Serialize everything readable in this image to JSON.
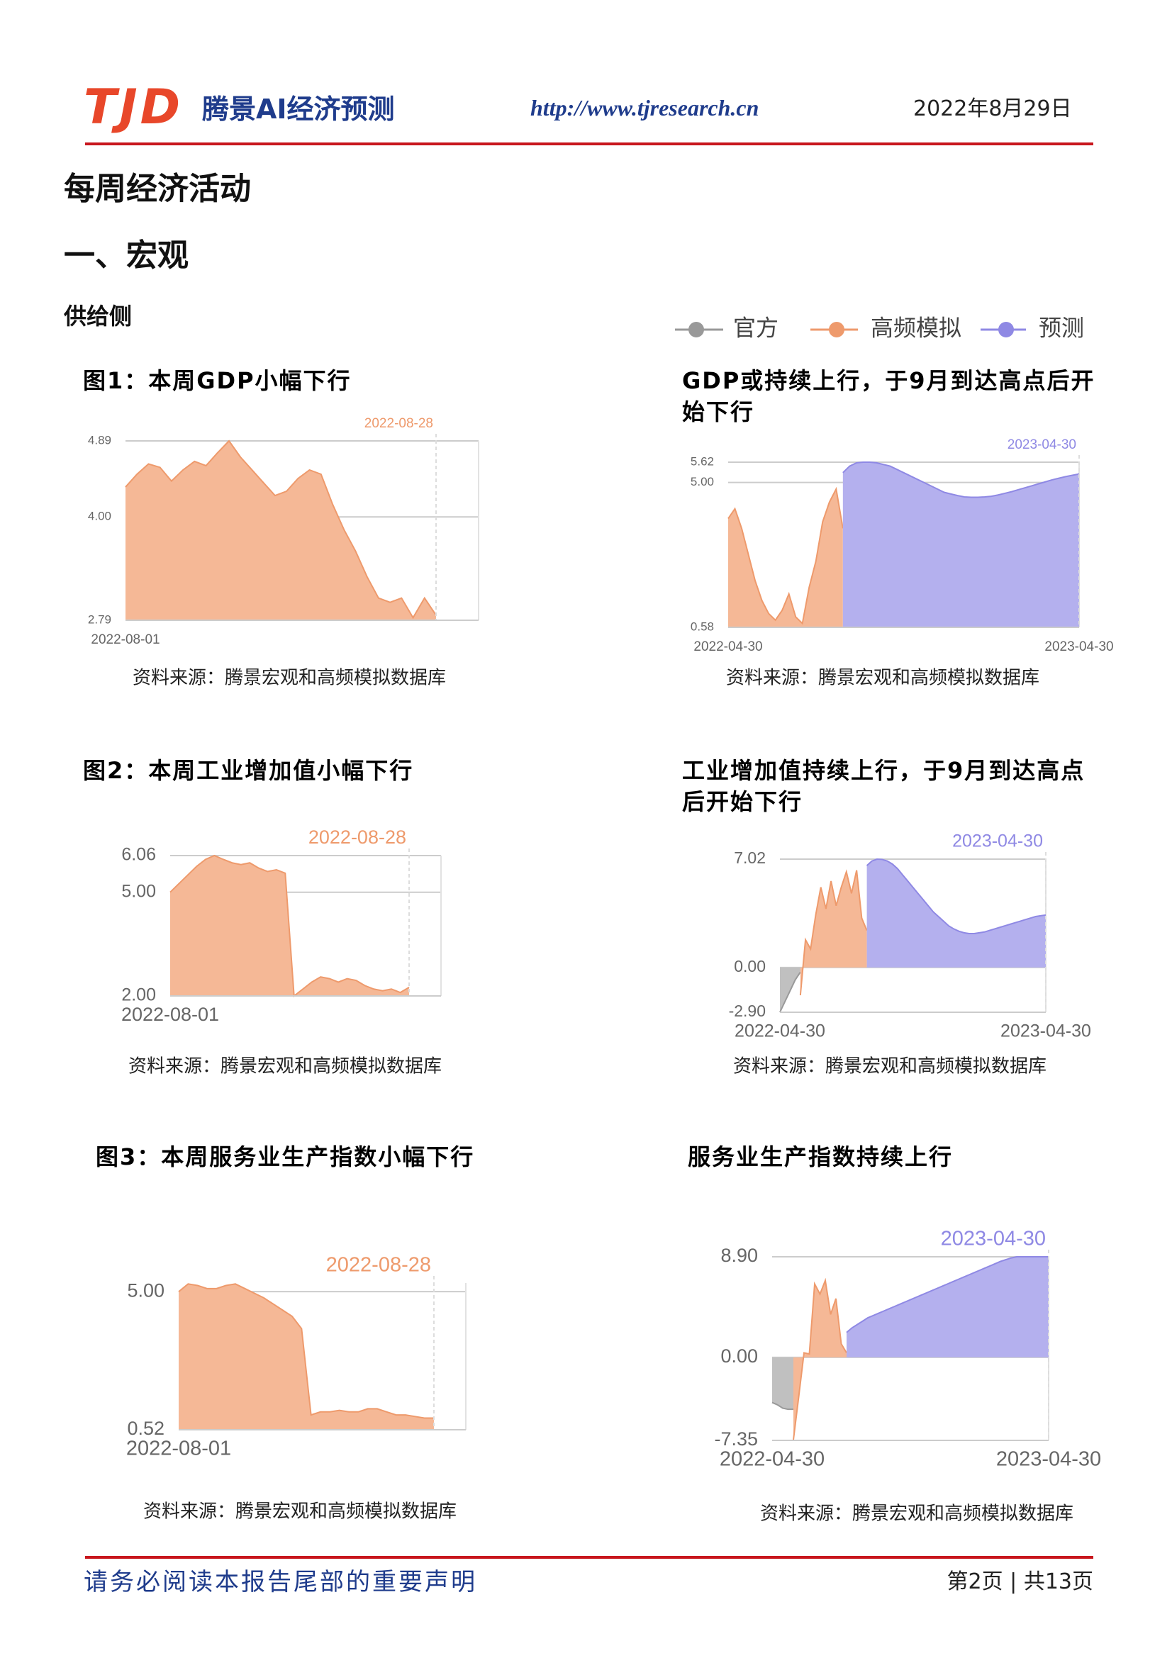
{
  "header": {
    "logo": "TJD",
    "brand": "腾景AI经济预测",
    "url": "http://www.tjresearch.cn",
    "date": "2022年8月29日"
  },
  "headings": {
    "title": "每周经济活动",
    "section": "一、宏观",
    "subsection": "供给侧"
  },
  "chart_data": [
    {
      "type": "area",
      "title": "图1：本周GDP小幅下行",
      "source": "资料来源：腾景宏观和高频模拟数据库",
      "annotation": "2022-08-28",
      "categories": [
        "2022-08-01",
        null,
        null,
        null,
        null,
        null,
        null,
        null,
        null,
        null,
        null,
        null,
        null,
        null,
        null,
        null,
        null,
        null,
        null,
        null,
        null,
        null,
        null,
        null,
        null,
        null,
        null,
        null
      ],
      "ylim": [
        2.79,
        4.89
      ],
      "yticks": [
        2.79,
        {
          "value": 4,
          "label": "4.00"
        },
        4.89
      ],
      "series": [
        {
          "name": "高频模拟",
          "color": "#f5b896",
          "values": [
            4.35,
            4.5,
            4.62,
            4.58,
            4.42,
            4.55,
            4.65,
            4.6,
            4.75,
            4.89,
            4.7,
            4.55,
            4.4,
            4.25,
            4.3,
            4.45,
            4.55,
            4.5,
            4.15,
            3.85,
            3.6,
            3.3,
            3.05,
            3.0,
            3.05,
            2.82,
            3.05,
            2.85
          ]
        }
      ]
    },
    {
      "type": "area",
      "title": "GDP或持续上行，于9月到达高点后开始下行",
      "source": "资料来源：腾景宏观和高频模拟数据库",
      "annotation": "2023-04-30",
      "categories": [
        "2022-04-30",
        null,
        null,
        null,
        null,
        null,
        null,
        null,
        null,
        null,
        null,
        null,
        null,
        null,
        null,
        null,
        null,
        null,
        null,
        null,
        null,
        null,
        null,
        null,
        null,
        null,
        null,
        null,
        null,
        null,
        null,
        null,
        null,
        null,
        null,
        null,
        null,
        null,
        null,
        null,
        null,
        null,
        null,
        null,
        null,
        null,
        null,
        null,
        null,
        null,
        null,
        null,
        "2023-04-30"
      ],
      "ylim": [
        0.58,
        5.62
      ],
      "yticks": [
        0.58,
        {
          "value": 5,
          "label": "5.00"
        },
        5.62
      ],
      "series": [
        {
          "name": "高频模拟",
          "color": "#f5b896",
          "values": [
            3.9,
            4.2,
            3.6,
            2.8,
            2.0,
            1.4,
            1.0,
            0.8,
            1.1,
            1.6,
            0.9,
            0.7,
            1.8,
            2.6,
            3.8,
            4.4,
            4.8,
            3.6,
            null,
            null,
            null,
            null,
            null,
            null,
            null,
            null,
            null,
            null,
            null,
            null,
            null,
            null,
            null,
            null,
            null,
            null,
            null,
            null,
            null,
            null,
            null,
            null,
            null,
            null,
            null,
            null,
            null,
            null,
            null,
            null,
            null,
            null,
            null
          ]
        },
        {
          "name": "预测",
          "color": "#b4b0ee",
          "values": [
            null,
            null,
            null,
            null,
            null,
            null,
            null,
            null,
            null,
            null,
            null,
            null,
            null,
            null,
            null,
            null,
            null,
            5.3,
            5.5,
            5.6,
            5.62,
            5.62,
            5.6,
            5.55,
            5.5,
            5.4,
            5.3,
            5.2,
            5.1,
            5.0,
            4.9,
            4.8,
            4.7,
            4.65,
            4.6,
            4.56,
            4.55,
            4.55,
            4.56,
            4.58,
            4.62,
            4.67,
            4.72,
            4.78,
            4.84,
            4.9,
            4.96,
            5.02,
            5.08,
            5.13,
            5.18,
            5.22,
            5.26
          ]
        }
      ]
    },
    {
      "type": "area",
      "title": "图2：本周工业增加值小幅下行",
      "source": "资料来源：腾景宏观和高频模拟数据库",
      "annotation": "2022-08-28",
      "categories": [
        "2022-08-01",
        null,
        null,
        null,
        null,
        null,
        null,
        null,
        null,
        null,
        null,
        null,
        null,
        null,
        null,
        null,
        null,
        null,
        null,
        null,
        null,
        null,
        null,
        null,
        null,
        null,
        null,
        null
      ],
      "ylim": [
        2,
        6.06
      ],
      "yticks": [
        {
          "value": 2,
          "label": "2.00"
        },
        {
          "value": 5,
          "label": "5.00"
        },
        6.06
      ],
      "series": [
        {
          "name": "高频模拟",
          "color": "#f5b896",
          "values": [
            5.0,
            5.25,
            5.5,
            5.75,
            5.95,
            6.06,
            5.95,
            5.85,
            5.8,
            5.85,
            5.7,
            5.6,
            5.65,
            5.55,
            2.0,
            2.2,
            2.4,
            2.55,
            2.5,
            2.4,
            2.5,
            2.45,
            2.3,
            2.2,
            2.15,
            2.2,
            2.1,
            2.25
          ]
        }
      ]
    },
    {
      "type": "area",
      "title": "工业增加值持续上行，于9月到达高点后开始下行",
      "source": "资料来源：腾景宏观和高频模拟数据库",
      "annotation": "2023-04-30",
      "categories": [
        "2022-04-30",
        null,
        null,
        null,
        null,
        null,
        null,
        null,
        null,
        null,
        null,
        null,
        null,
        null,
        null,
        null,
        null,
        null,
        null,
        null,
        null,
        null,
        null,
        null,
        null,
        null,
        null,
        null,
        null,
        null,
        null,
        null,
        null,
        null,
        null,
        null,
        null,
        null,
        null,
        null,
        null,
        null,
        null,
        null,
        null,
        null,
        null,
        null,
        null,
        null,
        null,
        null,
        "2023-04-30"
      ],
      "ylim": [
        -2.9,
        7.02
      ],
      "yticks": [
        {
          "value": -2.9,
          "label": "-2.90"
        },
        {
          "value": 0,
          "label": "0.00"
        },
        7.02
      ],
      "series": [
        {
          "name": "官方",
          "color": "#c0c0c0",
          "values": [
            -2.9,
            -2.2,
            -1.5,
            -0.8,
            -0.3,
            null,
            null,
            null,
            null,
            null,
            null,
            null,
            null,
            null,
            null,
            null,
            null,
            null,
            null,
            null,
            null,
            null,
            null,
            null,
            null,
            null,
            null,
            null,
            null,
            null,
            null,
            null,
            null,
            null,
            null,
            null,
            null,
            null,
            null,
            null,
            null,
            null,
            null,
            null,
            null,
            null,
            null,
            null,
            null,
            null,
            null,
            null,
            null
          ]
        },
        {
          "name": "高频模拟",
          "color": "#f5b896",
          "values": [
            null,
            null,
            null,
            null,
            -1.8,
            1.8,
            1.2,
            3.4,
            5.2,
            3.8,
            5.6,
            4.0,
            5.2,
            6.2,
            4.8,
            6.3,
            3.2,
            2.4,
            null,
            null,
            null,
            null,
            null,
            null,
            null,
            null,
            null,
            null,
            null,
            null,
            null,
            null,
            null,
            null,
            null,
            null,
            null,
            null,
            null,
            null,
            null,
            null,
            null,
            null,
            null,
            null,
            null,
            null,
            null,
            null,
            null,
            null,
            null
          ]
        },
        {
          "name": "预测",
          "color": "#b4b0ee",
          "values": [
            null,
            null,
            null,
            null,
            null,
            null,
            null,
            null,
            null,
            null,
            null,
            null,
            null,
            null,
            null,
            null,
            null,
            6.6,
            6.9,
            7.02,
            7.0,
            6.9,
            6.7,
            6.4,
            6.0,
            5.6,
            5.2,
            4.8,
            4.4,
            4.0,
            3.6,
            3.3,
            3.0,
            2.7,
            2.5,
            2.35,
            2.25,
            2.2,
            2.2,
            2.25,
            2.3,
            2.4,
            2.5,
            2.6,
            2.7,
            2.8,
            2.9,
            3.0,
            3.1,
            3.2,
            3.3,
            3.35,
            3.4
          ]
        }
      ]
    },
    {
      "type": "area",
      "title": "图3：本周服务业生产指数小幅下行",
      "source": "资料来源：腾景宏观和高频模拟数据库",
      "annotation": "2022-08-28",
      "categories": [
        "2022-08-01",
        null,
        null,
        null,
        null,
        null,
        null,
        null,
        null,
        null,
        null,
        null,
        null,
        null,
        null,
        null,
        null,
        null,
        null,
        null,
        null,
        null,
        null,
        null,
        null,
        null,
        null,
        null
      ],
      "ylim": [
        0.52,
        5.28
      ],
      "yticks": [
        0.52,
        {
          "value": 5,
          "label": "5.00"
        }
      ],
      "series": [
        {
          "name": "高频模拟",
          "color": "#f5b896",
          "values": [
            5.0,
            5.25,
            5.2,
            5.1,
            5.1,
            5.2,
            5.25,
            5.1,
            4.95,
            4.8,
            4.6,
            4.4,
            4.2,
            3.8,
            1.0,
            1.1,
            1.1,
            1.15,
            1.1,
            1.1,
            1.2,
            1.2,
            1.1,
            1.0,
            1.0,
            0.95,
            0.9,
            0.9
          ]
        }
      ]
    },
    {
      "type": "area",
      "title": "服务业生产指数持续上行",
      "source": "资料来源：腾景宏观和高频模拟数据库",
      "annotation": "2023-04-30",
      "categories": [
        "2022-04-30",
        null,
        null,
        null,
        null,
        null,
        null,
        null,
        null,
        null,
        null,
        null,
        null,
        null,
        null,
        null,
        null,
        null,
        null,
        null,
        null,
        null,
        null,
        null,
        null,
        null,
        null,
        null,
        null,
        null,
        null,
        null,
        null,
        null,
        null,
        null,
        null,
        null,
        null,
        null,
        null,
        null,
        null,
        null,
        null,
        null,
        null,
        null,
        null,
        null,
        null,
        null,
        "2023-04-30"
      ],
      "ylim": [
        -7.35,
        8.9
      ],
      "yticks": [
        -7.35,
        {
          "value": 0,
          "label": "0.00"
        },
        {
          "value": 8.9,
          "label": "8.90"
        }
      ],
      "series": [
        {
          "name": "官方",
          "color": "#c0c0c0",
          "values": [
            -4.0,
            -4.2,
            -4.5,
            -4.6,
            -4.6,
            null,
            null,
            null,
            null,
            null,
            null,
            null,
            null,
            null,
            null,
            null,
            null,
            null,
            null,
            null,
            null,
            null,
            null,
            null,
            null,
            null,
            null,
            null,
            null,
            null,
            null,
            null,
            null,
            null,
            null,
            null,
            null,
            null,
            null,
            null,
            null,
            null,
            null,
            null,
            null,
            null,
            null,
            null,
            null,
            null,
            null,
            null,
            null
          ]
        },
        {
          "name": "高频模拟",
          "color": "#f5b896",
          "values": [
            null,
            null,
            null,
            null,
            -7.3,
            -3.5,
            0.4,
            0.3,
            6.5,
            5.6,
            6.8,
            3.8,
            5.2,
            1.2,
            0.4,
            null,
            null,
            null,
            null,
            null,
            null,
            null,
            null,
            null,
            null,
            null,
            null,
            null,
            null,
            null,
            null,
            null,
            null,
            null,
            null,
            null,
            null,
            null,
            null,
            null,
            null,
            null,
            null,
            null,
            null,
            null,
            null,
            null,
            null,
            null,
            null,
            null,
            null
          ]
        },
        {
          "name": "预测",
          "color": "#b4b0ee",
          "values": [
            null,
            null,
            null,
            null,
            null,
            null,
            null,
            null,
            null,
            null,
            null,
            null,
            null,
            null,
            2.2,
            2.6,
            2.9,
            3.2,
            3.5,
            3.7,
            3.9,
            4.1,
            4.3,
            4.5,
            4.7,
            4.9,
            5.1,
            5.3,
            5.5,
            5.7,
            5.9,
            6.1,
            6.3,
            6.5,
            6.7,
            6.9,
            7.1,
            7.3,
            7.5,
            7.7,
            7.9,
            8.1,
            8.3,
            8.5,
            8.65,
            8.8,
            8.9,
            8.9,
            8.9,
            8.9,
            8.9,
            8.9,
            8.9
          ]
        }
      ]
    }
  ],
  "footer": {
    "disclaimer": "请务必阅读本报告尾部的重要声明",
    "page": "第2页 | 共13页"
  }
}
